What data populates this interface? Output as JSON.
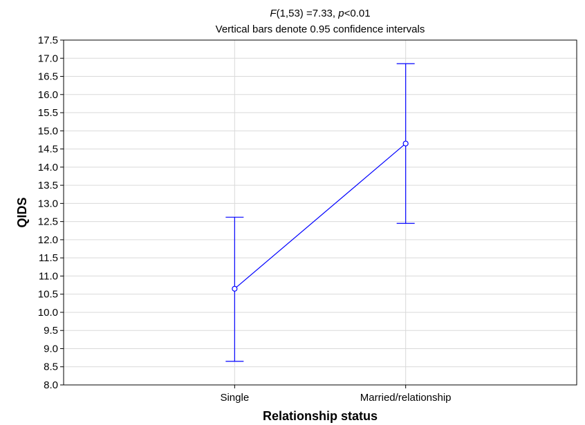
{
  "chart_data": {
    "type": "line",
    "title_parts": [
      {
        "text": "F",
        "italic": true
      },
      {
        "text": "(1,53) =7.33, ",
        "italic": false
      },
      {
        "text": "p",
        "italic": true
      },
      {
        "text": "<0.01",
        "italic": false
      }
    ],
    "subtitle": "Vertical bars denote 0.95 confidence intervals",
    "xlabel": "Relationship status",
    "ylabel": "QIDS",
    "categories": [
      "Single",
      "Married/relationship"
    ],
    "series": [
      {
        "values": [
          10.65,
          14.65
        ],
        "ci_lower": [
          8.65,
          12.45
        ],
        "ci_upper": [
          12.62,
          16.85
        ],
        "color": "#0000ff"
      }
    ],
    "ylim": [
      8.0,
      17.5
    ],
    "ytick_step": 0.5,
    "grid": true
  }
}
